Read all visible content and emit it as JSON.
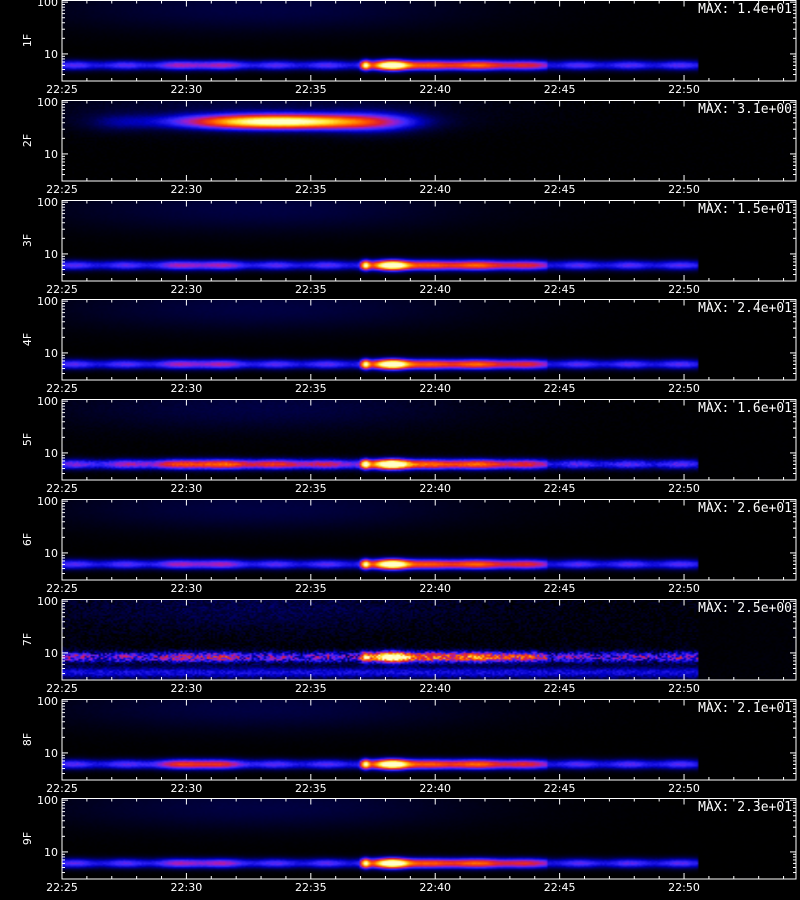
{
  "chart_data": {
    "type": "heatmap",
    "time_axis": {
      "tick_labels": [
        "22:25",
        "22:30",
        "22:35",
        "22:40",
        "22:45",
        "22:50"
      ],
      "range_minutes": [
        0,
        29.5
      ],
      "data_end_minutes": 25.6
    },
    "y_axis": {
      "scale": "log",
      "tick_labels": [
        "10",
        "100"
      ],
      "range": [
        3,
        110
      ]
    },
    "footer_label": "",
    "colormap": [
      "#000000",
      "#000050",
      "#0000c8",
      "#3a28ff",
      "#a01ec8",
      "#dc1e32",
      "#ff5000",
      "#ffa000",
      "#ffee40",
      "#ffffc8"
    ],
    "panels": [
      {
        "label": "1F",
        "max": "MAX: 1.4e+01",
        "profile": "main",
        "noise": 0.05
      },
      {
        "label": "2F",
        "max": "MAX: 3.1e+00",
        "profile": "blob",
        "noise": 0.05
      },
      {
        "label": "3F",
        "max": "MAX: 1.5e+01",
        "profile": "main",
        "noise": 0.05
      },
      {
        "label": "4F",
        "max": "MAX: 2.4e+01",
        "profile": "main",
        "noise": 0.05
      },
      {
        "label": "5F",
        "max": "MAX: 1.6e+01",
        "profile": "main5",
        "noise": 0.12
      },
      {
        "label": "6F",
        "max": "MAX: 2.6e+01",
        "profile": "main",
        "noise": 0.05
      },
      {
        "label": "7F",
        "max": "MAX: 2.5e+00",
        "profile": "noisy",
        "noise": 0.35
      },
      {
        "label": "8F",
        "max": "MAX: 2.1e+01",
        "profile": "main8",
        "noise": 0.06
      },
      {
        "label": "9F",
        "max": "MAX: 2.3e+01",
        "profile": "main",
        "noise": 0.05
      }
    ]
  }
}
